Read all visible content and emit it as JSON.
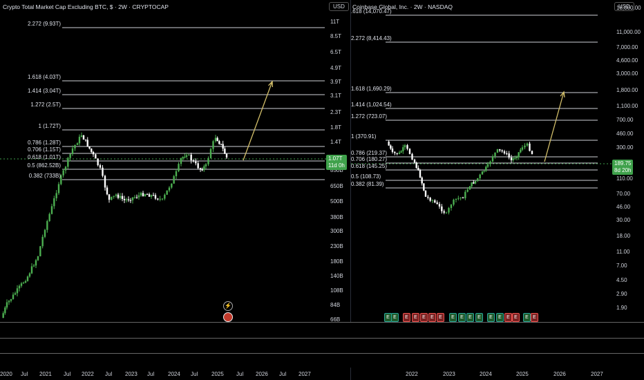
{
  "left_chart": {
    "title": "Crypto Total Market Cap Excluding BTC, $ · 2W · CRYPTOCAP",
    "currency": "USD",
    "price_label": "1.07T",
    "countdown": "11d 0h",
    "y_ticks": [
      "11T",
      "8.5T",
      "6.5T",
      "4.9T",
      "3.9T",
      "3.1T",
      "2.3T",
      "1.8T",
      "1.4T",
      "1.07T",
      "850B",
      "650B",
      "500B",
      "380B",
      "300B",
      "230B",
      "180B",
      "140B",
      "108B",
      "84B",
      "66B"
    ],
    "fib_levels": [
      "2.272 (9.93T)",
      "1.618 (4.03T)",
      "1.414 (3.04T)",
      "1.272 (2.5T)",
      "1 (1.72T)",
      "0.786 (1.28T)",
      "0.706 (1.15T)",
      "0.618 (1.01T)",
      "0.5 (862.52B)",
      "0.382 (733B)"
    ],
    "x_ticks": [
      "2020",
      "Jul",
      "2021",
      "Jul",
      "2022",
      "Jul",
      "2023",
      "Jul",
      "2024",
      "Jul",
      "2025",
      "Jul",
      "2026",
      "Jul",
      "2027"
    ]
  },
  "right_chart": {
    "title": "Coinbase Global, Inc. · 2W · NASDAQ",
    "currency": "USD",
    "price_label": "189.75",
    "countdown": "8d 20h",
    "y_ticks": [
      "18,000.00",
      "11,000.00",
      "7,000.00",
      "4,600.00",
      "3,000.00",
      "1,800.00",
      "1,100.00",
      "700.00",
      "460.00",
      "300.00",
      "189.75",
      "110.00",
      "70.00",
      "46.00",
      "30.00",
      "18.00",
      "11.00",
      "7.00",
      "4.50",
      "2.90",
      "1.90"
    ],
    "fib_levels": [
      ".618 (14,070.47)",
      "2.272 (8,414.43)",
      "1.618 (1,690.29)",
      "1.414 (1,024.54)",
      "1.272 (723.07)",
      "1 (370.91)",
      "0.786 (219.37)",
      "0.706 (180.27)",
      "0.618 (145.25)",
      "0.5 (108.73)",
      "0.382 (81.39)"
    ],
    "x_ticks": [
      "2022",
      "2023",
      "2024",
      "2025",
      "2026",
      "2027"
    ],
    "earnings_markers": [
      "E",
      "E",
      "E",
      "E",
      "E",
      "E",
      "E",
      "E",
      "E",
      "E",
      "E",
      "E",
      "E",
      "E",
      "E",
      "E",
      "E",
      "E",
      "E",
      "E"
    ]
  },
  "colors": {
    "up": "#26a69a",
    "down": "#ef5350",
    "candle_up": "#4caf50",
    "candle_down": "#ffffff",
    "projection": "#d4c06a",
    "badge": "#3fa14b"
  }
}
